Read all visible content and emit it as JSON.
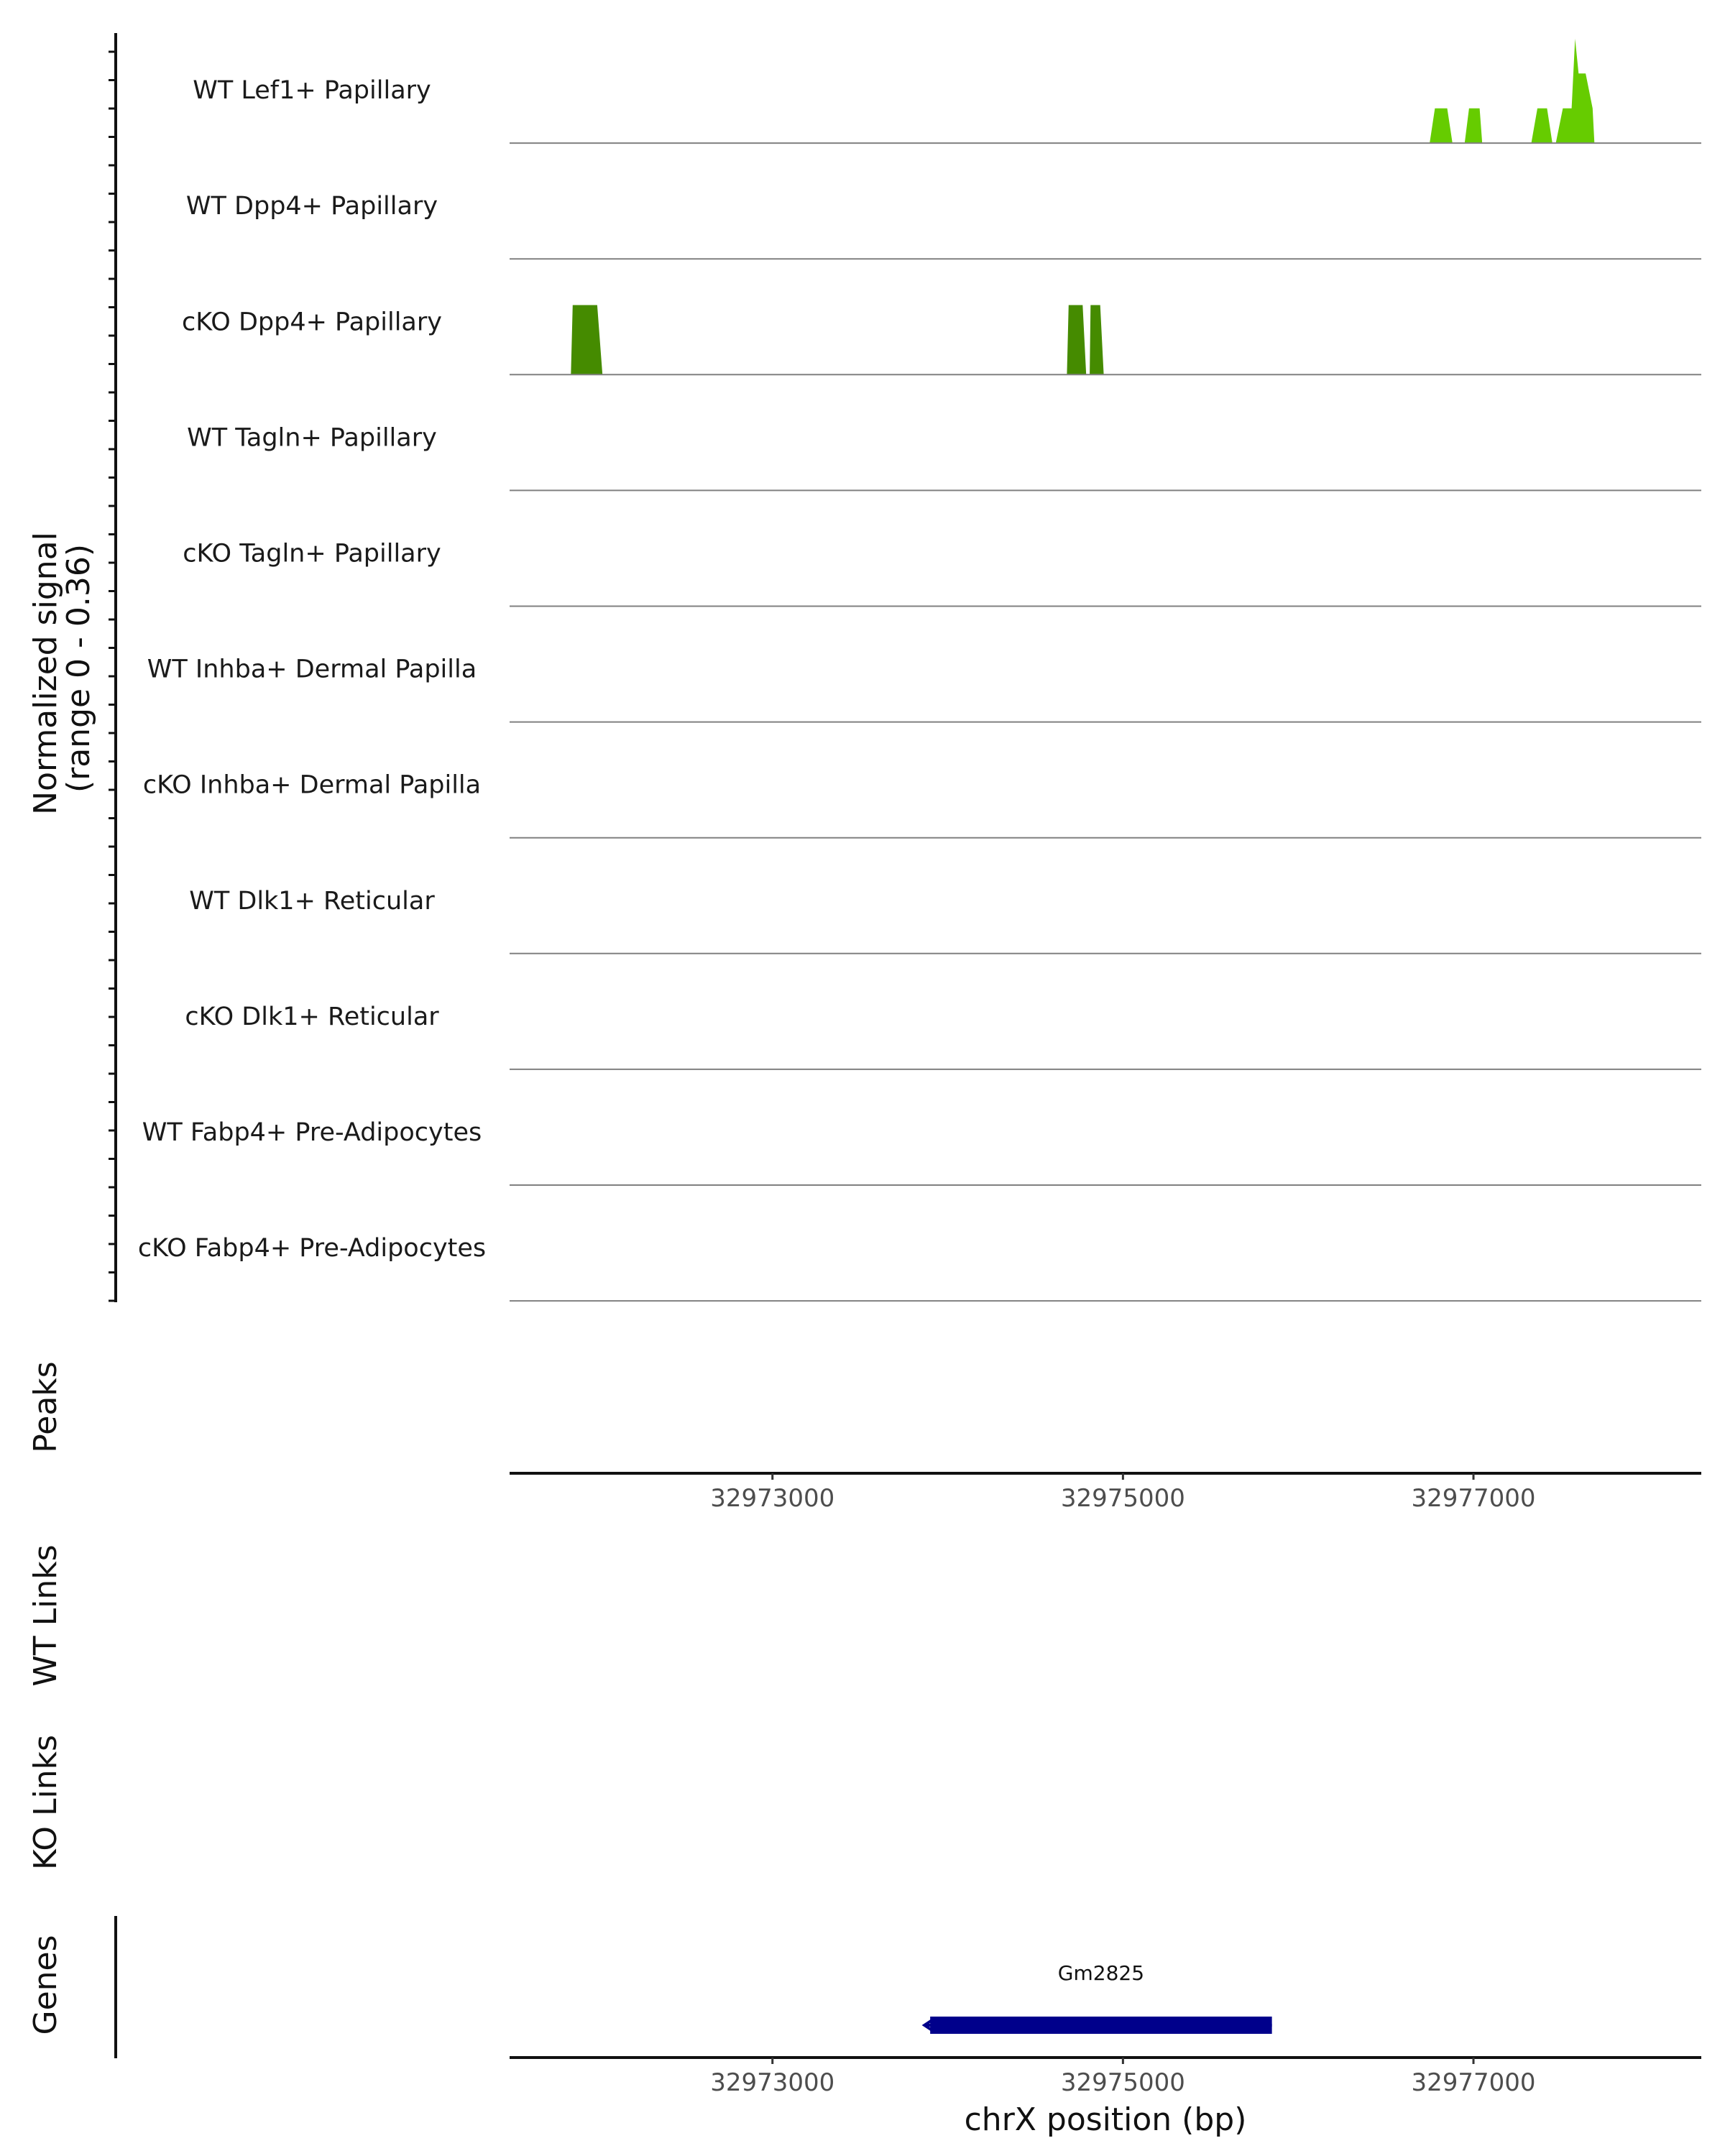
{
  "chart_data": {
    "type": "area",
    "chromosome": "chrX",
    "xlim": [
      32971500,
      32978300
    ],
    "ylim": [
      0,
      0.36
    ],
    "signal_axis_label": [
      "Normalized signal",
      "(range 0 - 0.36)"
    ],
    "x_axis_title": "chrX position (bp)",
    "x_ticks": [
      32973000,
      32975000,
      32977000
    ],
    "tracks": [
      {
        "name": "WT Lef1+ Papillary",
        "color": "#66cc00",
        "points": [
          [
            32976750,
            0
          ],
          [
            32976780,
            0.12
          ],
          [
            32976850,
            0.12
          ],
          [
            32976880,
            0
          ],
          [
            32976950,
            0
          ],
          [
            32976975,
            0.12
          ],
          [
            32977035,
            0.12
          ],
          [
            32977050,
            0
          ],
          [
            32977330,
            0
          ],
          [
            32977365,
            0.12
          ],
          [
            32977420,
            0.12
          ],
          [
            32977450,
            0
          ],
          [
            32977470,
            0
          ],
          [
            32977510,
            0.12
          ],
          [
            32977560,
            0.12
          ],
          [
            32977580,
            0.36
          ],
          [
            32977600,
            0.24
          ],
          [
            32977640,
            0.24
          ],
          [
            32977680,
            0.12
          ],
          [
            32977690,
            0
          ]
        ]
      },
      {
        "name": "WT Dpp4+ Papillary",
        "color": "#66cc00",
        "points": []
      },
      {
        "name": "cKO Dpp4+ Papillary",
        "color": "#458b00",
        "points": [
          [
            32971850,
            0
          ],
          [
            32971860,
            0.24
          ],
          [
            32972000,
            0.24
          ],
          [
            32972030,
            0
          ],
          [
            32974680,
            0
          ],
          [
            32974690,
            0.24
          ],
          [
            32974770,
            0.24
          ],
          [
            32974790,
            0
          ],
          [
            32974810,
            0
          ],
          [
            32974815,
            0.24
          ],
          [
            32974870,
            0.24
          ],
          [
            32974890,
            0
          ]
        ]
      },
      {
        "name": "WT Tagln+ Papillary",
        "color": "#66cc00",
        "points": []
      },
      {
        "name": "cKO Tagln+ Papillary",
        "color": "#458b00",
        "points": []
      },
      {
        "name": "WT Inhba+ Dermal Papilla",
        "color": "#66cc00",
        "points": []
      },
      {
        "name": "cKO Inhba+ Dermal Papilla",
        "color": "#458b00",
        "points": []
      },
      {
        "name": "WT Dlk1+ Reticular",
        "color": "#66cc00",
        "points": []
      },
      {
        "name": "cKO Dlk1+ Reticular",
        "color": "#458b00",
        "points": []
      },
      {
        "name": "WT Fabp4+ Pre-Adipocytes",
        "color": "#66cc00",
        "points": []
      },
      {
        "name": "cKO Fabp4+ Pre-Adipocytes",
        "color": "#458b00",
        "points": []
      }
    ],
    "panels": [
      "Peaks",
      "WT Links",
      "KO Links",
      "Genes"
    ],
    "genes": [
      {
        "name": "Gm2825",
        "start": 32973900,
        "end": 32975850,
        "strand": "-",
        "color": "#00008b"
      }
    ]
  }
}
